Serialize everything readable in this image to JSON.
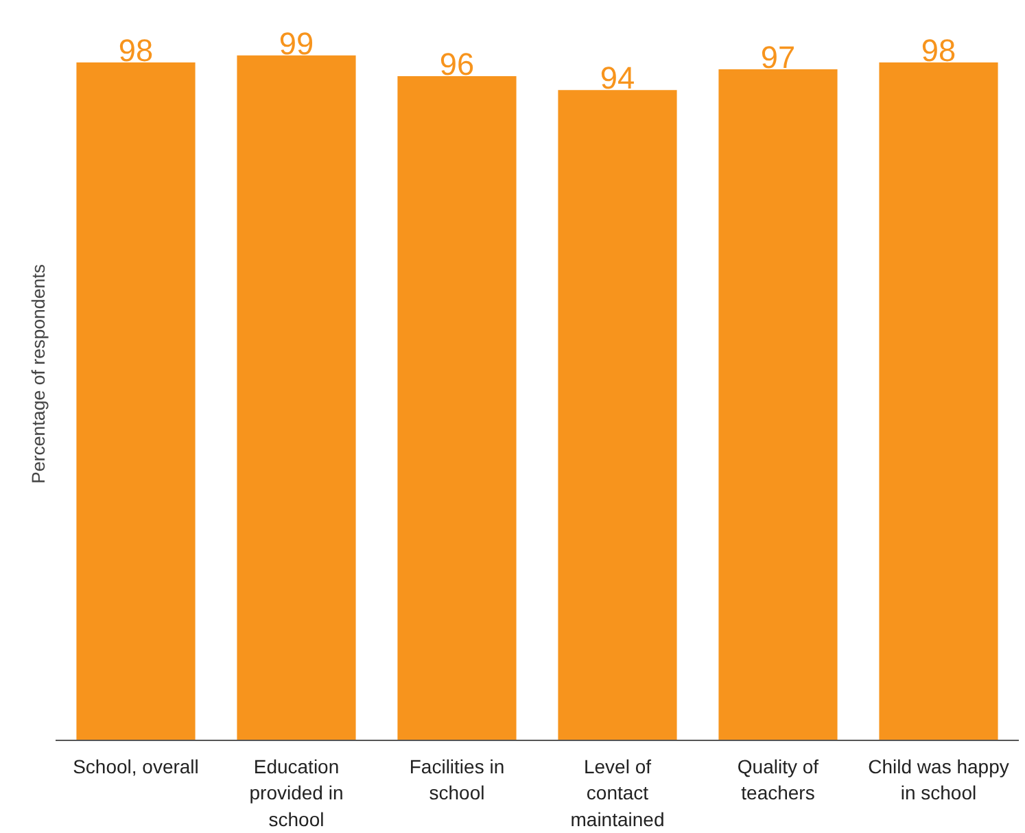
{
  "chart_data": {
    "type": "bar",
    "ylabel": "Percentage of respondents",
    "categories": [
      "School, overall",
      "Education provided in school",
      "Facilities in school",
      "Level of contact maintained",
      "Quality of teachers",
      "Child was happy in school"
    ],
    "values": [
      98,
      99,
      96,
      94,
      97,
      98
    ],
    "color": "#f7941d",
    "data_labels": true,
    "grid": false
  }
}
